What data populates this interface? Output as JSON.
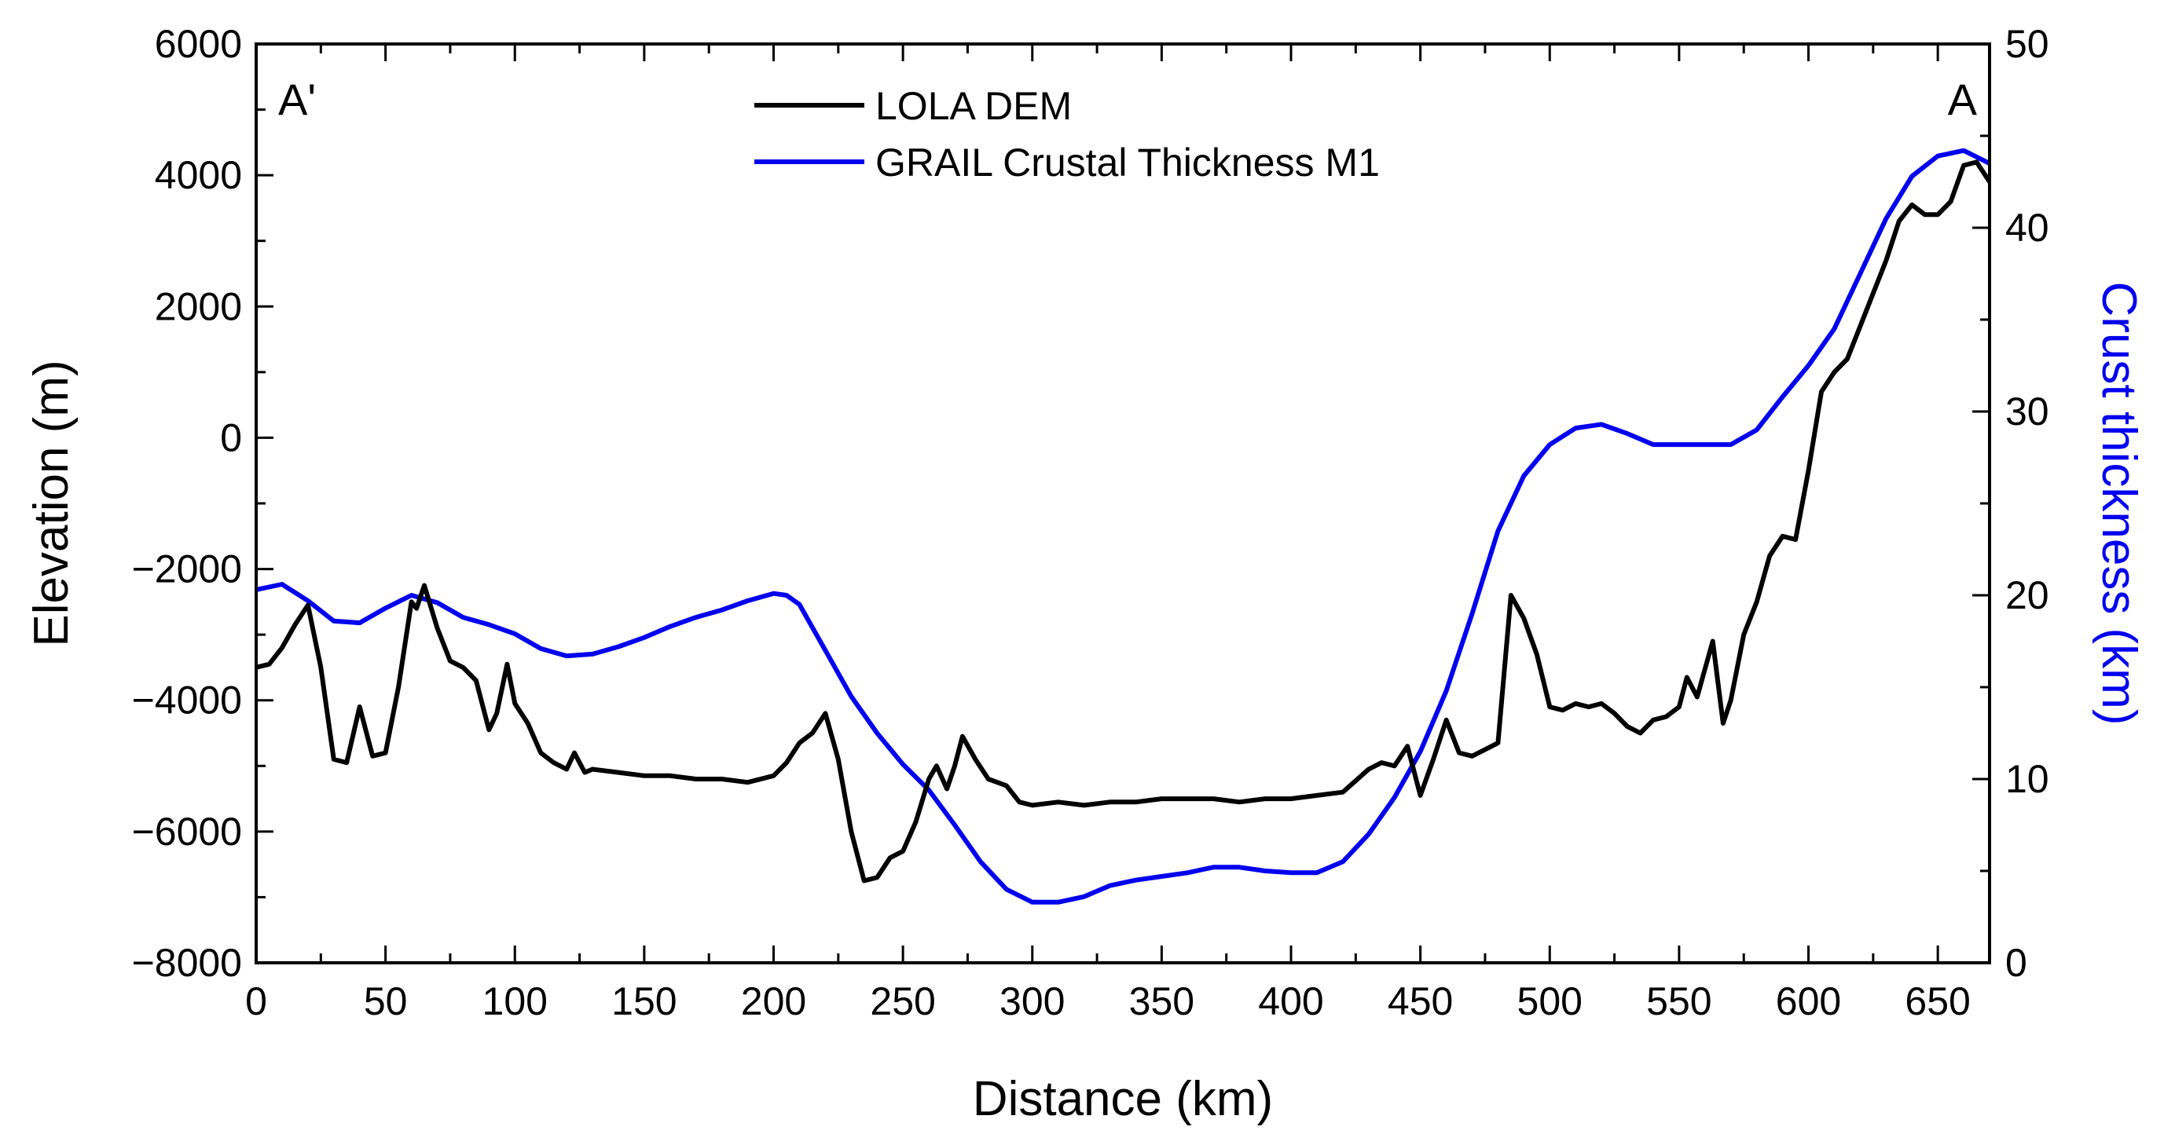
{
  "chart_data": {
    "type": "line",
    "x_axis": {
      "label": "Distance (km)",
      "range": [
        0,
        670
      ],
      "ticks": [
        0,
        50,
        100,
        150,
        200,
        250,
        300,
        350,
        400,
        450,
        500,
        550,
        600,
        650
      ],
      "tick_labels": [
        "0",
        "50",
        "100",
        "150",
        "200",
        "250",
        "300",
        "350",
        "400",
        "450",
        "500",
        "550",
        "600",
        "650"
      ]
    },
    "y_left": {
      "label": "Elevation (m)",
      "range": [
        -8000,
        6000
      ],
      "ticks": [
        -8000,
        -6000,
        -4000,
        -2000,
        0,
        2000,
        4000,
        6000
      ],
      "tick_labels": [
        "−8000",
        "−6000",
        "−4000",
        "−2000",
        "0",
        "2000",
        "4000",
        "6000"
      ]
    },
    "y_right": {
      "label": "Crust thickness (km)",
      "range": [
        0,
        50
      ],
      "ticks": [
        0,
        10,
        20,
        30,
        40,
        50
      ],
      "tick_labels": [
        "0",
        "10",
        "20",
        "30",
        "40",
        "50"
      ],
      "color": "#0000ee"
    },
    "profile_labels": {
      "left": "A'",
      "right": "A"
    },
    "legend": {
      "position": "top-center",
      "entries": [
        {
          "name": "LOLA DEM",
          "color": "#000000"
        },
        {
          "name": "GRAIL Crustal Thickness M1",
          "color": "#0000ee"
        }
      ]
    },
    "series": [
      {
        "name": "LOLA DEM",
        "axis": "left",
        "color": "#000000",
        "points": [
          [
            0,
            -3500
          ],
          [
            5,
            -3450
          ],
          [
            10,
            -3200
          ],
          [
            15,
            -2850
          ],
          [
            20,
            -2550
          ],
          [
            25,
            -3500
          ],
          [
            30,
            -4900
          ],
          [
            35,
            -4950
          ],
          [
            40,
            -4100
          ],
          [
            45,
            -4850
          ],
          [
            50,
            -4800
          ],
          [
            55,
            -3800
          ],
          [
            60,
            -2500
          ],
          [
            62,
            -2600
          ],
          [
            65,
            -2250
          ],
          [
            70,
            -2900
          ],
          [
            75,
            -3400
          ],
          [
            80,
            -3500
          ],
          [
            85,
            -3700
          ],
          [
            90,
            -4450
          ],
          [
            93,
            -4200
          ],
          [
            97,
            -3450
          ],
          [
            100,
            -4050
          ],
          [
            105,
            -4350
          ],
          [
            110,
            -4800
          ],
          [
            115,
            -4950
          ],
          [
            120,
            -5050
          ],
          [
            123,
            -4800
          ],
          [
            127,
            -5100
          ],
          [
            130,
            -5050
          ],
          [
            140,
            -5100
          ],
          [
            150,
            -5150
          ],
          [
            160,
            -5150
          ],
          [
            170,
            -5200
          ],
          [
            180,
            -5200
          ],
          [
            190,
            -5250
          ],
          [
            200,
            -5150
          ],
          [
            205,
            -4950
          ],
          [
            210,
            -4650
          ],
          [
            215,
            -4500
          ],
          [
            220,
            -4200
          ],
          [
            225,
            -4900
          ],
          [
            230,
            -6000
          ],
          [
            235,
            -6750
          ],
          [
            240,
            -6700
          ],
          [
            245,
            -6400
          ],
          [
            250,
            -6300
          ],
          [
            255,
            -5850
          ],
          [
            260,
            -5200
          ],
          [
            263,
            -5000
          ],
          [
            267,
            -5350
          ],
          [
            270,
            -5000
          ],
          [
            273,
            -4550
          ],
          [
            278,
            -4900
          ],
          [
            283,
            -5200
          ],
          [
            290,
            -5300
          ],
          [
            295,
            -5550
          ],
          [
            300,
            -5600
          ],
          [
            310,
            -5550
          ],
          [
            320,
            -5600
          ],
          [
            330,
            -5550
          ],
          [
            340,
            -5550
          ],
          [
            350,
            -5500
          ],
          [
            360,
            -5500
          ],
          [
            370,
            -5500
          ],
          [
            380,
            -5550
          ],
          [
            390,
            -5500
          ],
          [
            400,
            -5500
          ],
          [
            410,
            -5450
          ],
          [
            420,
            -5400
          ],
          [
            430,
            -5050
          ],
          [
            435,
            -4950
          ],
          [
            440,
            -5000
          ],
          [
            445,
            -4700
          ],
          [
            450,
            -5450
          ],
          [
            455,
            -4900
          ],
          [
            460,
            -4300
          ],
          [
            465,
            -4800
          ],
          [
            470,
            -4850
          ],
          [
            475,
            -4750
          ],
          [
            480,
            -4650
          ],
          [
            485,
            -2400
          ],
          [
            490,
            -2750
          ],
          [
            495,
            -3300
          ],
          [
            500,
            -4100
          ],
          [
            505,
            -4150
          ],
          [
            510,
            -4050
          ],
          [
            515,
            -4100
          ],
          [
            520,
            -4050
          ],
          [
            525,
            -4200
          ],
          [
            530,
            -4400
          ],
          [
            535,
            -4500
          ],
          [
            540,
            -4300
          ],
          [
            545,
            -4250
          ],
          [
            550,
            -4100
          ],
          [
            553,
            -3650
          ],
          [
            557,
            -3950
          ],
          [
            563,
            -3100
          ],
          [
            567,
            -4350
          ],
          [
            570,
            -4000
          ],
          [
            575,
            -3000
          ],
          [
            580,
            -2500
          ],
          [
            585,
            -1800
          ],
          [
            590,
            -1500
          ],
          [
            595,
            -1550
          ],
          [
            600,
            -500
          ],
          [
            605,
            700
          ],
          [
            610,
            1000
          ],
          [
            615,
            1200
          ],
          [
            620,
            1700
          ],
          [
            625,
            2200
          ],
          [
            630,
            2700
          ],
          [
            635,
            3300
          ],
          [
            640,
            3550
          ],
          [
            645,
            3400
          ],
          [
            650,
            3400
          ],
          [
            655,
            3600
          ],
          [
            660,
            4150
          ],
          [
            665,
            4200
          ],
          [
            670,
            3900
          ]
        ]
      },
      {
        "name": "GRAIL Crustal Thickness M1",
        "axis": "right",
        "color": "#0000ee",
        "points": [
          [
            0,
            20.3
          ],
          [
            10,
            20.6
          ],
          [
            20,
            19.7
          ],
          [
            30,
            18.6
          ],
          [
            40,
            18.5
          ],
          [
            50,
            19.3
          ],
          [
            60,
            20.0
          ],
          [
            70,
            19.6
          ],
          [
            80,
            18.8
          ],
          [
            90,
            18.4
          ],
          [
            100,
            17.9
          ],
          [
            110,
            17.1
          ],
          [
            120,
            16.7
          ],
          [
            130,
            16.8
          ],
          [
            140,
            17.2
          ],
          [
            150,
            17.7
          ],
          [
            160,
            18.3
          ],
          [
            170,
            18.8
          ],
          [
            180,
            19.2
          ],
          [
            190,
            19.7
          ],
          [
            200,
            20.1
          ],
          [
            205,
            20.0
          ],
          [
            210,
            19.5
          ],
          [
            220,
            17.0
          ],
          [
            230,
            14.5
          ],
          [
            240,
            12.5
          ],
          [
            250,
            10.8
          ],
          [
            260,
            9.4
          ],
          [
            270,
            7.5
          ],
          [
            280,
            5.5
          ],
          [
            290,
            4.0
          ],
          [
            300,
            3.3
          ],
          [
            310,
            3.3
          ],
          [
            320,
            3.6
          ],
          [
            330,
            4.2
          ],
          [
            340,
            4.5
          ],
          [
            350,
            4.7
          ],
          [
            360,
            4.9
          ],
          [
            370,
            5.2
          ],
          [
            380,
            5.2
          ],
          [
            390,
            5.0
          ],
          [
            400,
            4.9
          ],
          [
            410,
            4.9
          ],
          [
            420,
            5.5
          ],
          [
            430,
            7.0
          ],
          [
            440,
            9.0
          ],
          [
            450,
            11.5
          ],
          [
            460,
            14.8
          ],
          [
            470,
            19.0
          ],
          [
            480,
            23.5
          ],
          [
            490,
            26.5
          ],
          [
            500,
            28.2
          ],
          [
            510,
            29.1
          ],
          [
            520,
            29.3
          ],
          [
            530,
            28.8
          ],
          [
            540,
            28.2
          ],
          [
            550,
            28.2
          ],
          [
            560,
            28.2
          ],
          [
            570,
            28.2
          ],
          [
            580,
            29.0
          ],
          [
            590,
            30.8
          ],
          [
            600,
            32.5
          ],
          [
            610,
            34.5
          ],
          [
            620,
            37.5
          ],
          [
            630,
            40.5
          ],
          [
            640,
            42.8
          ],
          [
            650,
            43.9
          ],
          [
            660,
            44.2
          ],
          [
            670,
            43.5
          ]
        ]
      }
    ]
  }
}
